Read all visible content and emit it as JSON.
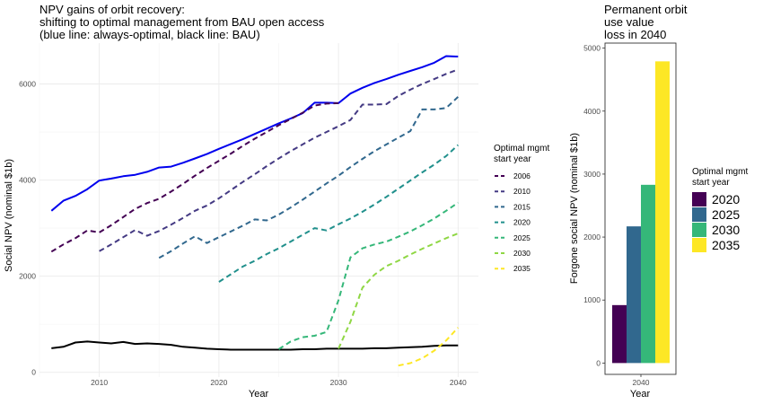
{
  "chart_data": [
    {
      "type": "line",
      "title_lines": [
        "NPV gains of orbit recovery:",
        "shifting to optimal management from BAU open access",
        "(blue line: always-optimal, black line: BAU)"
      ],
      "xlabel": "Year",
      "ylabel": "Social NPV (nominal $1b)",
      "xlim": [
        2005,
        2041.7
      ],
      "ylim": [
        -100,
        6850
      ],
      "xticks": [
        2010,
        2020,
        2030,
        2040
      ],
      "xtick_labels": [
        "2010",
        "2020",
        "2030",
        "2040"
      ],
      "yticks": [
        0,
        2000,
        4000,
        6000
      ],
      "ytick_labels": [
        "0",
        "2000",
        "4000",
        "6000"
      ],
      "grid": true,
      "legend": {
        "title_lines": [
          "Optimal mgmt",
          "start year"
        ],
        "position": "right",
        "entries": [
          "2006",
          "2010",
          "2015",
          "2020",
          "2025",
          "2030",
          "2035"
        ]
      },
      "series": [
        {
          "name": "always-optimal",
          "style": "solid",
          "color": "#0000ee",
          "x": [
            2006,
            2007,
            2008,
            2009,
            2010,
            2011,
            2012,
            2013,
            2014,
            2015,
            2016,
            2017,
            2018,
            2019,
            2020,
            2021,
            2022,
            2023,
            2024,
            2025,
            2026,
            2027,
            2028,
            2029,
            2030,
            2031,
            2032,
            2033,
            2034,
            2035,
            2036,
            2037,
            2038,
            2039,
            2040
          ],
          "y": [
            3360,
            3570,
            3670,
            3810,
            3990,
            4030,
            4080,
            4110,
            4170,
            4260,
            4280,
            4360,
            4450,
            4540,
            4650,
            4750,
            4850,
            4960,
            5070,
            5180,
            5280,
            5390,
            5610,
            5610,
            5600,
            5800,
            5920,
            6020,
            6100,
            6190,
            6270,
            6350,
            6440,
            6580,
            6570
          ]
        },
        {
          "name": "BAU",
          "style": "solid",
          "color": "#000000",
          "x": [
            2006,
            2007,
            2008,
            2009,
            2010,
            2011,
            2012,
            2013,
            2014,
            2015,
            2016,
            2017,
            2018,
            2019,
            2020,
            2021,
            2022,
            2023,
            2024,
            2025,
            2026,
            2027,
            2028,
            2029,
            2030,
            2031,
            2032,
            2033,
            2034,
            2035,
            2036,
            2037,
            2038,
            2039,
            2040
          ],
          "y": [
            500,
            530,
            620,
            640,
            620,
            600,
            630,
            590,
            600,
            590,
            570,
            530,
            510,
            490,
            480,
            470,
            470,
            470,
            470,
            470,
            470,
            480,
            480,
            490,
            490,
            490,
            490,
            500,
            500,
            510,
            520,
            530,
            550,
            560,
            560
          ]
        },
        {
          "name": "2006",
          "style": "dashed",
          "color": "#440154",
          "x": [
            2006,
            2007,
            2008,
            2009,
            2010,
            2011,
            2012,
            2013,
            2014,
            2015,
            2016,
            2017,
            2018,
            2019,
            2020,
            2021,
            2022,
            2023,
            2024,
            2025,
            2026,
            2027,
            2028,
            2029,
            2030
          ],
          "y": [
            2510,
            2660,
            2790,
            2950,
            2910,
            3060,
            3230,
            3400,
            3520,
            3610,
            3760,
            3920,
            4090,
            4250,
            4400,
            4550,
            4710,
            4860,
            5000,
            5140,
            5270,
            5400,
            5550,
            5590,
            5600
          ]
        },
        {
          "name": "2010",
          "style": "dashed",
          "color": "#443a83",
          "x": [
            2010,
            2011,
            2012,
            2013,
            2014,
            2015,
            2016,
            2017,
            2018,
            2019,
            2020,
            2021,
            2022,
            2023,
            2024,
            2025,
            2026,
            2027,
            2028,
            2029,
            2030,
            2031,
            2032,
            2033,
            2034,
            2035,
            2036,
            2037,
            2038,
            2039,
            2040
          ],
          "y": [
            2520,
            2660,
            2810,
            2960,
            2840,
            2940,
            3070,
            3210,
            3360,
            3470,
            3620,
            3790,
            3960,
            4120,
            4290,
            4450,
            4600,
            4740,
            4880,
            5000,
            5120,
            5250,
            5570,
            5570,
            5580,
            5750,
            5880,
            6000,
            6100,
            6210,
            6300
          ]
        },
        {
          "name": "2015",
          "style": "dashed",
          "color": "#31688e",
          "x": [
            2015,
            2016,
            2017,
            2018,
            2019,
            2020,
            2021,
            2022,
            2023,
            2024,
            2025,
            2026,
            2027,
            2028,
            2029,
            2030,
            2031,
            2032,
            2033,
            2034,
            2035,
            2036,
            2037,
            2038,
            2039,
            2040
          ],
          "y": [
            2380,
            2520,
            2680,
            2830,
            2690,
            2810,
            2930,
            3050,
            3180,
            3160,
            3280,
            3430,
            3590,
            3760,
            3930,
            4090,
            4270,
            4440,
            4600,
            4740,
            4880,
            5020,
            5470,
            5470,
            5500,
            5730
          ]
        },
        {
          "name": "2020",
          "style": "dashed",
          "color": "#21908c",
          "x": [
            2020,
            2021,
            2022,
            2023,
            2024,
            2025,
            2026,
            2027,
            2028,
            2029,
            2030,
            2031,
            2032,
            2033,
            2034,
            2035,
            2036,
            2037,
            2038,
            2039,
            2040
          ],
          "y": [
            1880,
            2040,
            2200,
            2320,
            2460,
            2580,
            2720,
            2860,
            3000,
            2950,
            3080,
            3200,
            3340,
            3490,
            3650,
            3820,
            3990,
            4160,
            4320,
            4500,
            4730
          ]
        },
        {
          "name": "2025",
          "style": "dashed",
          "color": "#35b779",
          "x": [
            2025,
            2026,
            2027,
            2028,
            2029,
            2030,
            2031,
            2032,
            2033,
            2034,
            2035,
            2036,
            2037,
            2038,
            2039,
            2040
          ],
          "y": [
            480,
            640,
            730,
            760,
            840,
            1500,
            2390,
            2580,
            2660,
            2720,
            2820,
            2930,
            3060,
            3200,
            3360,
            3530
          ]
        },
        {
          "name": "2030",
          "style": "dashed",
          "color": "#8fd744",
          "x": [
            2030,
            2031,
            2032,
            2033,
            2034,
            2035,
            2036,
            2037,
            2038,
            2039,
            2040
          ],
          "y": [
            490,
            1050,
            1760,
            2030,
            2210,
            2320,
            2450,
            2570,
            2680,
            2790,
            2890
          ]
        },
        {
          "name": "2035",
          "style": "dashed",
          "color": "#fde725",
          "x": [
            2035,
            2036,
            2037,
            2038,
            2039,
            2040
          ],
          "y": [
            140,
            190,
            290,
            450,
            660,
            930
          ]
        }
      ]
    },
    {
      "type": "bar",
      "title_lines": [
        "Permanent orbit",
        "use value",
        "loss in 2040"
      ],
      "xlabel": "Year",
      "ylabel": "Forgone social NPV (nominal $1b)",
      "categories": [
        "2040"
      ],
      "ylim": [
        -180,
        5080
      ],
      "yticks": [
        0,
        1000,
        2000,
        3000,
        4000,
        5000
      ],
      "ytick_labels": [
        "0",
        "1000",
        "2000",
        "3000",
        "4000",
        "5000"
      ],
      "grid": false,
      "legend": {
        "title_lines": [
          "Optimal mgmt",
          "start year"
        ],
        "position": "right"
      },
      "series": [
        {
          "name": "2020",
          "color": "#440154",
          "values": [
            920
          ]
        },
        {
          "name": "2025",
          "color": "#31688e",
          "values": [
            2170
          ]
        },
        {
          "name": "2030",
          "color": "#35b779",
          "values": [
            2830
          ]
        },
        {
          "name": "2035",
          "color": "#fde725",
          "values": [
            4790
          ]
        }
      ]
    }
  ]
}
